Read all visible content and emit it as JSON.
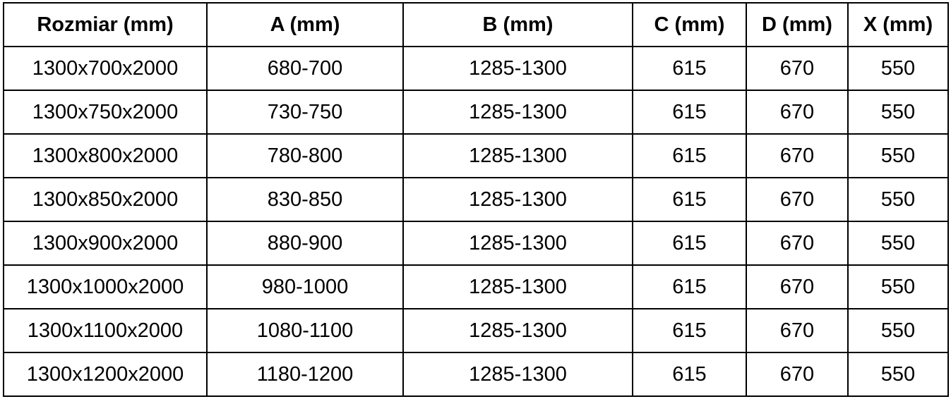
{
  "chart_data": {
    "type": "table",
    "title": "",
    "columns": [
      "Rozmiar (mm)",
      "A (mm)",
      "B (mm)",
      "C (mm)",
      "D (mm)",
      "X (mm)"
    ],
    "rows": [
      [
        "1300x700x2000",
        "680-700",
        "1285-1300",
        "615",
        "670",
        "550"
      ],
      [
        "1300x750x2000",
        "730-750",
        "1285-1300",
        "615",
        "670",
        "550"
      ],
      [
        "1300x800x2000",
        "780-800",
        "1285-1300",
        "615",
        "670",
        "550"
      ],
      [
        "1300x850x2000",
        "830-850",
        "1285-1300",
        "615",
        "670",
        "550"
      ],
      [
        "1300x900x2000",
        "880-900",
        "1285-1300",
        "615",
        "670",
        "550"
      ],
      [
        "1300x1000x2000",
        "980-1000",
        "1285-1300",
        "615",
        "670",
        "550"
      ],
      [
        "1300x1100x2000",
        "1080-1100",
        "1285-1300",
        "615",
        "670",
        "550"
      ],
      [
        "1300x1200x2000",
        "1180-1200",
        "1285-1300",
        "615",
        "670",
        "550"
      ]
    ],
    "layout": {
      "grid": true,
      "border_color": "#000000",
      "text_color": "#000000",
      "background_color": "#ffffff",
      "header_bold": true
    }
  }
}
